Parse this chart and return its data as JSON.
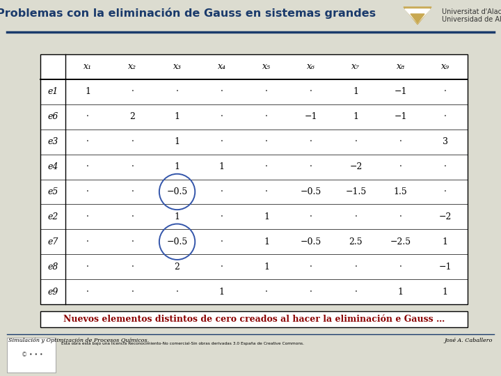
{
  "title": "Problemas con la eliminación de Gauss en sistemas grandes",
  "bg_color": "#dcdcd0",
  "title_color": "#1a3a6b",
  "title_fontsize": 11.5,
  "col_headers": [
    "",
    "x₁",
    "x₂",
    "x₃",
    "x₄",
    "x₅",
    "x₆",
    "x₇",
    "x₈",
    "x₉"
  ],
  "row_headers": [
    "e1",
    "e6",
    "e3",
    "e4",
    "e5",
    "e2",
    "e7",
    "e8",
    "e9"
  ],
  "matrix": [
    [
      "1",
      "·",
      "·",
      "·",
      "·",
      "·",
      "1",
      "−1",
      "·"
    ],
    [
      "·",
      "2",
      "1",
      "·",
      "·",
      "−1",
      "1",
      "−1",
      "·"
    ],
    [
      "·",
      "·",
      "1",
      "·",
      "·",
      "·",
      "·",
      "·",
      "3"
    ],
    [
      "·",
      "·",
      "1",
      "1",
      "·",
      "·",
      "−2",
      "·",
      "·"
    ],
    [
      "·",
      "·",
      "−0.5",
      "·",
      "·",
      "−0.5",
      "−1.5",
      "1.5",
      "·"
    ],
    [
      "·",
      "·",
      "1",
      "·",
      "1",
      "·",
      "·",
      "·",
      "−2"
    ],
    [
      "·",
      "·",
      "−0.5",
      "·",
      "1",
      "−0.5",
      "2.5",
      "−2.5",
      "1"
    ],
    [
      "·",
      "·",
      "2",
      "·",
      "1",
      "·",
      "·",
      "·",
      "−1"
    ],
    [
      "·",
      "·",
      "·",
      "1",
      "·",
      "·",
      "·",
      "1",
      "1"
    ]
  ],
  "circled_cells": [
    [
      4,
      2
    ],
    [
      6,
      2
    ]
  ],
  "bottom_text": "Nuevos elementos distintos de cero creados al hacer la eliminación e Gauss …",
  "bottom_text_color": "#8b0000",
  "footer_left": "Simulación y Optimización de Procesos Químicos.",
  "footer_right": "José A. Caballero",
  "line_color": "#1a3a6b",
  "table_text_color": "#000000",
  "footer_line_color": "#1a3a6b",
  "uni_text1": "Universitat d'Alacant",
  "uni_text2": "Universidad de Alicante",
  "title_bar_color": "#dcdcd0"
}
